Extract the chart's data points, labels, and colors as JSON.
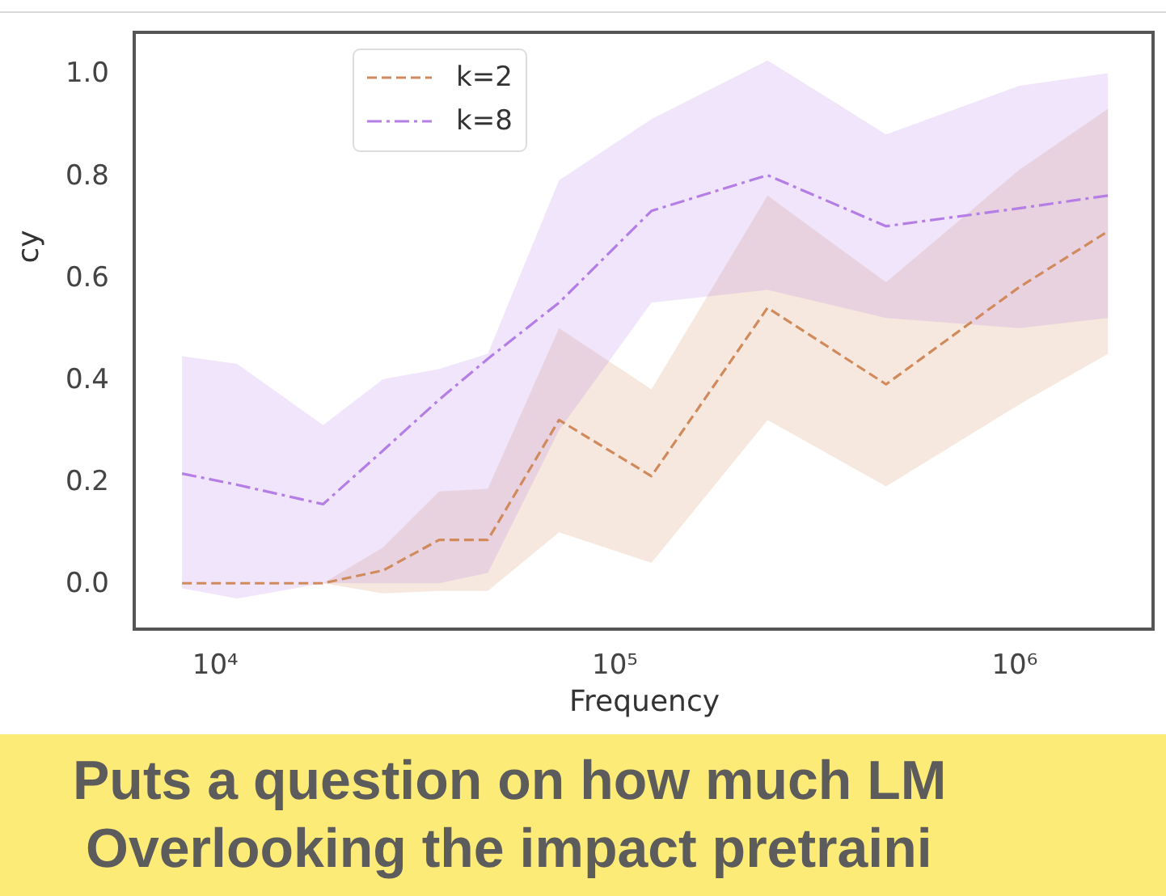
{
  "chart_data": {
    "type": "line",
    "xlabel": "Frequency",
    "ylabel": "cy",
    "annotations": [
      "Puts a question on how much LM",
      "Overlooking the impact pretraini"
    ],
    "x": [
      8300,
      11400,
      18700,
      26400,
      36500,
      48300,
      72800,
      124000,
      242000,
      479000,
      1030000,
      1720000
    ],
    "series": [
      {
        "name": "k=2",
        "color": "#d08a5c",
        "line_style": "dashed",
        "values": [
          0,
          0,
          0,
          0.025,
          0.085,
          0.085,
          0.32,
          0.21,
          0.54,
          0.39,
          0.58,
          0.69
        ],
        "lower": [
          0,
          0,
          0,
          -0.02,
          -0.015,
          -0.015,
          0.1,
          0.04,
          0.32,
          0.19,
          0.35,
          0.45
        ],
        "upper": [
          0,
          0,
          0,
          0.07,
          0.18,
          0.185,
          0.5,
          0.38,
          0.76,
          0.59,
          0.81,
          0.93
        ]
      },
      {
        "name": "k=8",
        "color": "#b47ee6",
        "line_style": "dashdot",
        "values": [
          0.215,
          0.193,
          0.155,
          0.26,
          0.36,
          0.44,
          0.55,
          0.73,
          0.8,
          0.7,
          0.735,
          0.76
        ],
        "lower": [
          -0.01,
          -0.03,
          0,
          0,
          0,
          0.02,
          0.3,
          0.55,
          0.575,
          0.52,
          0.5,
          0.52
        ],
        "upper": [
          0.445,
          0.43,
          0.31,
          0.4,
          0.42,
          0.45,
          0.79,
          0.91,
          1.025,
          0.88,
          0.975,
          1.0
        ]
      }
    ],
    "xlim": [
      6300,
      2230000
    ],
    "xticks": [
      {
        "value": 10000,
        "label": "10⁴"
      },
      {
        "value": 100000,
        "label": "10⁵"
      },
      {
        "value": 1000000,
        "label": "10⁶"
      }
    ],
    "ylim": [
      -0.09,
      1.08
    ],
    "yticks": [
      {
        "value": 0,
        "label": "0.0"
      },
      0.2,
      0.4,
      0.6,
      0.8,
      {
        "value": 1,
        "label": "1.0"
      }
    ],
    "log": "x",
    "legend": "top left"
  }
}
